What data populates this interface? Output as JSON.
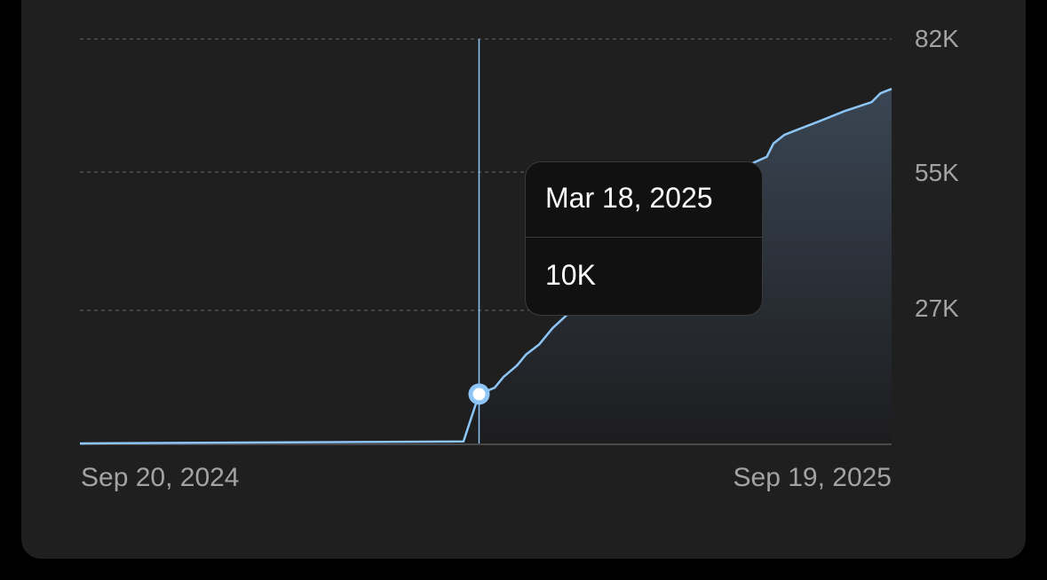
{
  "chart_data": {
    "type": "area",
    "x_tick_labels": [
      "Sep 20, 2024",
      "Sep 19, 2025"
    ],
    "y_tick_labels": [
      "27K",
      "55K",
      "82K"
    ],
    "y_ticks": [
      27000,
      55000,
      82000
    ],
    "xlim": [
      "2024-09-20",
      "2025-09-19"
    ],
    "ylim": [
      0,
      82000
    ],
    "grid": "horizontal dashed",
    "line_color": "#8ec5f7",
    "points": [
      [
        "2024-09-20",
        0
      ],
      [
        "2025-03-11",
        400
      ],
      [
        "2025-03-18",
        10000
      ],
      [
        "2025-03-25",
        11300
      ],
      [
        "2025-03-29",
        13500
      ],
      [
        "2025-04-04",
        15800
      ],
      [
        "2025-04-08",
        18000
      ],
      [
        "2025-04-14",
        20100
      ],
      [
        "2025-04-20",
        23400
      ],
      [
        "2025-04-26",
        25900
      ],
      [
        "2025-05-22",
        35600
      ],
      [
        "2025-06-19",
        46200
      ],
      [
        "2025-07-17",
        56500
      ],
      [
        "2025-07-25",
        58100
      ],
      [
        "2025-07-28",
        60800
      ],
      [
        "2025-08-02",
        62600
      ],
      [
        "2025-08-10",
        64000
      ],
      [
        "2025-08-18",
        65400
      ],
      [
        "2025-08-29",
        67400
      ],
      [
        "2025-09-10",
        69200
      ],
      [
        "2025-09-14",
        71000
      ],
      [
        "2025-09-19",
        71900
      ]
    ],
    "tooltip": {
      "date": "Mar 18, 2025",
      "value_label": "10K",
      "x": "2025-03-18",
      "y": 10000
    }
  }
}
